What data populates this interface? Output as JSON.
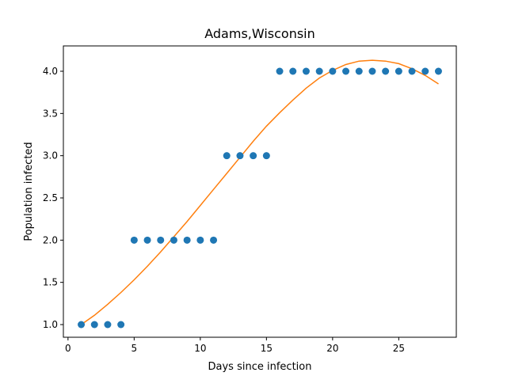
{
  "chart_data": {
    "type": "scatter",
    "title": "Adams,Wisconsin",
    "xlabel": "Days since infection",
    "ylabel": "Population infected",
    "xlim": [
      -0.35,
      29.35
    ],
    "ylim": [
      0.85,
      4.3
    ],
    "xticks": [
      0,
      5,
      10,
      15,
      20,
      25
    ],
    "xtick_labels": [
      "0",
      "5",
      "10",
      "15",
      "20",
      "25"
    ],
    "yticks": [
      1.0,
      1.5,
      2.0,
      2.5,
      3.0,
      3.5,
      4.0
    ],
    "ytick_labels": [
      "1.0",
      "1.5",
      "2.0",
      "2.5",
      "3.0",
      "3.5",
      "4.0"
    ],
    "grid": false,
    "series": [
      {
        "kind": "scatter",
        "color": "#1f77b4",
        "x": [
          1,
          2,
          3,
          4,
          5,
          6,
          7,
          8,
          9,
          10,
          11,
          12,
          13,
          14,
          15,
          16,
          17,
          18,
          19,
          20,
          21,
          22,
          23,
          24,
          25,
          26,
          27,
          28
        ],
        "y": [
          1,
          1,
          1,
          1,
          2,
          2,
          2,
          2,
          2,
          2,
          2,
          3,
          3,
          3,
          3,
          4,
          4,
          4,
          4,
          4,
          4,
          4,
          4,
          4,
          4,
          4,
          4,
          4
        ]
      },
      {
        "kind": "line",
        "color": "#ff7f0e",
        "x": [
          1,
          2,
          3,
          4,
          5,
          6,
          7,
          8,
          9,
          10,
          11,
          12,
          13,
          14,
          15,
          16,
          17,
          18,
          19,
          20,
          21,
          22,
          23,
          24,
          25,
          26,
          27,
          28
        ],
        "y": [
          1.0,
          1.11,
          1.24,
          1.38,
          1.53,
          1.69,
          1.86,
          2.04,
          2.22,
          2.41,
          2.6,
          2.79,
          2.98,
          3.17,
          3.35,
          3.51,
          3.66,
          3.8,
          3.92,
          4.01,
          4.08,
          4.12,
          4.13,
          4.12,
          4.09,
          4.03,
          3.95,
          3.85
        ]
      }
    ]
  }
}
